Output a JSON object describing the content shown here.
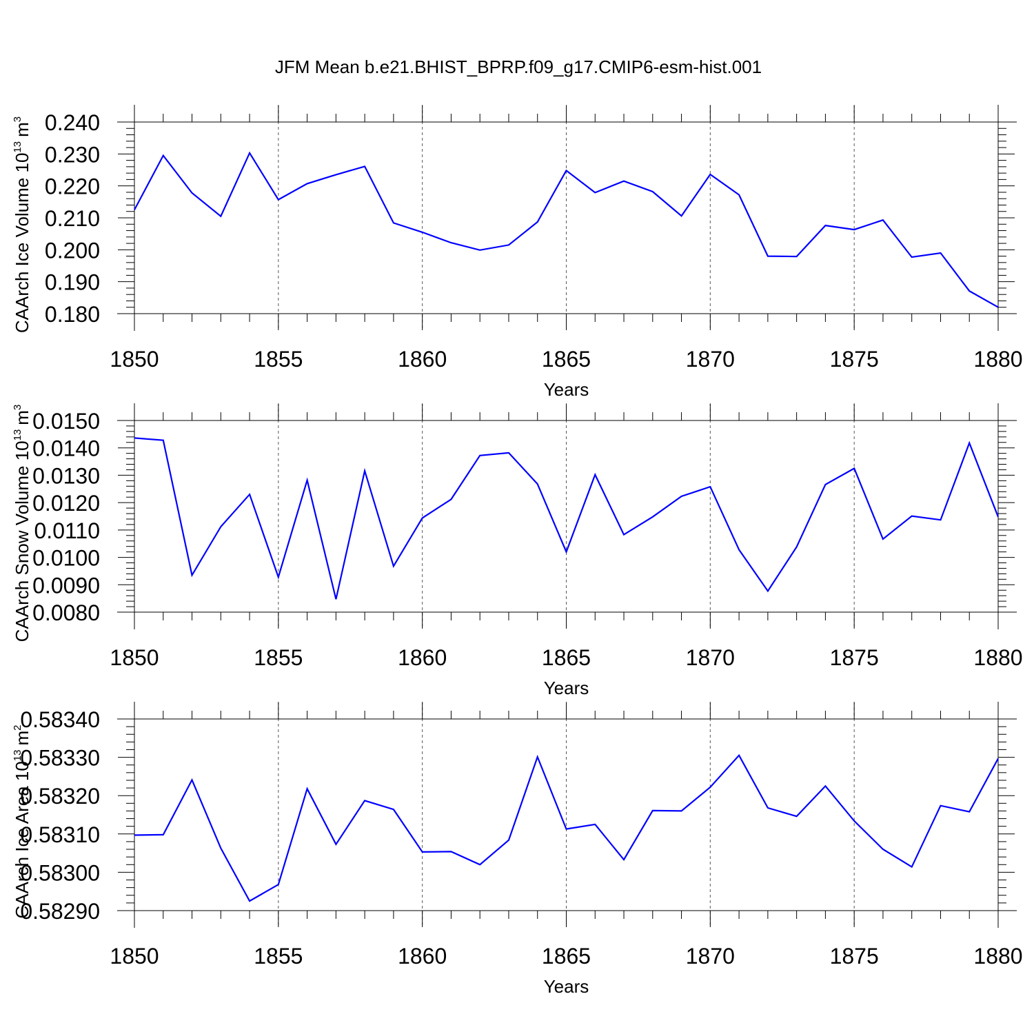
{
  "figure_title": "JFM Mean b.e21.BHIST_BPRP.f09_g17.CMIP6-esm-hist.001",
  "colors": {
    "series": "#0000ff",
    "axis": "#000000",
    "grid": "#555555"
  },
  "chart_data": [
    {
      "type": "line",
      "title": "JFM Mean b.e21.BHIST_BPRP.f09_g17.CMIP6-esm-hist.001",
      "xlabel": "Years",
      "ylabel": "CAArch Ice Volume 10",
      "ylabel_exp": "13",
      "ylabel_unit": "m",
      "ylabel_unit_exp": "3",
      "xlim": [
        1850,
        1880
      ],
      "ylim": [
        0.18,
        0.24
      ],
      "xticks": [
        "1850",
        "1855",
        "1860",
        "1865",
        "1870",
        "1875",
        "1880"
      ],
      "yticks": [
        "0.180",
        "0.190",
        "0.200",
        "0.210",
        "0.220",
        "0.230",
        "0.240"
      ],
      "grid": "vertical dashed at major x ticks",
      "x": [
        1850,
        1851,
        1852,
        1853,
        1854,
        1855,
        1856,
        1857,
        1858,
        1859,
        1860,
        1861,
        1862,
        1863,
        1864,
        1865,
        1866,
        1867,
        1868,
        1869,
        1870,
        1871,
        1872,
        1873,
        1874,
        1875,
        1876,
        1877,
        1878,
        1879,
        1880
      ],
      "values": [
        0.2125,
        0.2295,
        0.2178,
        0.2105,
        0.2303,
        0.2157,
        0.2207,
        0.2235,
        0.2261,
        0.2084,
        0.2055,
        0.2022,
        0.1999,
        0.2015,
        0.2087,
        0.2248,
        0.2179,
        0.2215,
        0.2182,
        0.2106,
        0.2236,
        0.2172,
        0.198,
        0.1979,
        0.2076,
        0.2063,
        0.2093,
        0.1977,
        0.199,
        0.1871,
        0.182
      ]
    },
    {
      "type": "line",
      "xlabel": "Years",
      "ylabel": "CAArch Snow Volume 10",
      "ylabel_exp": "13",
      "ylabel_unit": "m",
      "ylabel_unit_exp": "3",
      "xlim": [
        1850,
        1880
      ],
      "ylim": [
        0.008,
        0.015
      ],
      "xticks": [
        "1850",
        "1855",
        "1860",
        "1865",
        "1870",
        "1875",
        "1880"
      ],
      "yticks": [
        "0.0080",
        "0.0090",
        "0.0100",
        "0.0110",
        "0.0120",
        "0.0130",
        "0.0140",
        "0.0150"
      ],
      "grid": "vertical dashed at major x ticks",
      "x": [
        1850,
        1851,
        1852,
        1853,
        1854,
        1855,
        1856,
        1857,
        1858,
        1859,
        1860,
        1861,
        1862,
        1863,
        1864,
        1865,
        1866,
        1867,
        1868,
        1869,
        1870,
        1871,
        1872,
        1873,
        1874,
        1875,
        1876,
        1877,
        1878,
        1879,
        1880
      ],
      "values": [
        0.01436,
        0.01428,
        0.00935,
        0.01112,
        0.0123,
        0.00928,
        0.01282,
        0.00847,
        0.01316,
        0.00968,
        0.01144,
        0.01212,
        0.01372,
        0.01382,
        0.01268,
        0.0102,
        0.01302,
        0.01083,
        0.01148,
        0.01223,
        0.01258,
        0.01028,
        0.00877,
        0.01038,
        0.01266,
        0.01325,
        0.01067,
        0.01151,
        0.01137,
        0.01418,
        0.01148
      ]
    },
    {
      "type": "line",
      "xlabel": "Years",
      "ylabel": "CAArch Ice Area 10",
      "ylabel_exp": "13",
      "ylabel_unit": "m",
      "ylabel_unit_exp": "2",
      "xlim": [
        1850,
        1880
      ],
      "ylim": [
        0.5829,
        0.5834
      ],
      "xticks": [
        "1850",
        "1855",
        "1860",
        "1865",
        "1870",
        "1875",
        "1880"
      ],
      "yticks": [
        "0.58290",
        "0.58300",
        "0.58310",
        "0.58320",
        "0.58330",
        "0.58340"
      ],
      "grid": "vertical dashed at major x ticks",
      "x": [
        1850,
        1851,
        1852,
        1853,
        1854,
        1855,
        1856,
        1857,
        1858,
        1859,
        1860,
        1861,
        1862,
        1863,
        1864,
        1865,
        1866,
        1867,
        1868,
        1869,
        1870,
        1871,
        1872,
        1873,
        1874,
        1875,
        1876,
        1877,
        1878,
        1879,
        1880
      ],
      "values": [
        0.583097,
        0.583098,
        0.583241,
        0.583063,
        0.582925,
        0.582968,
        0.583218,
        0.583073,
        0.583187,
        0.583164,
        0.583053,
        0.583054,
        0.58302,
        0.583084,
        0.583301,
        0.583113,
        0.583125,
        0.583033,
        0.583161,
        0.58316,
        0.583222,
        0.583305,
        0.583168,
        0.583146,
        0.583225,
        0.583134,
        0.58306,
        0.583014,
        0.583174,
        0.583158,
        0.583297
      ]
    }
  ]
}
